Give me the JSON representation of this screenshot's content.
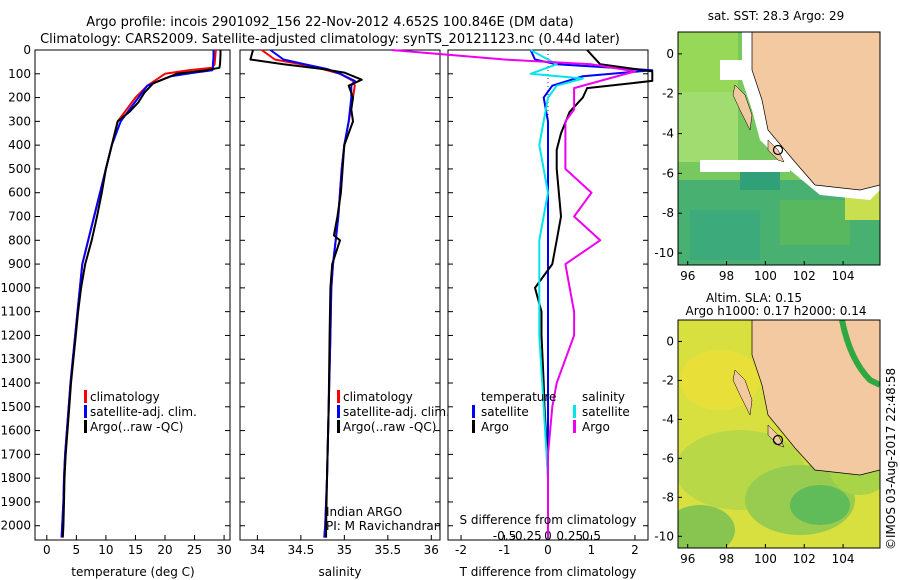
{
  "header": {
    "line1": "Argo profile: incois 2901092_156 22-Nov-2012 4.652S 100.846E (DM data)",
    "line2": "Climatology: CARS2009. Satellite-adjusted climatology: synTS_20121123.nc (0.44d later)"
  },
  "colors": {
    "climatology": "#ff0000",
    "satellite": "#0000ff",
    "argo": "#000000",
    "sal_sat": "#00e5ee",
    "sal_argo": "#ee00ee"
  },
  "legend": {
    "climatology": "climatology",
    "satellite": "satellite-adj. clim.",
    "argo": "Argo(..raw -QC)"
  },
  "diff_legend": {
    "temperature": "temperature",
    "salinity": "salinity",
    "satellite": "satellite",
    "argo": "Argo"
  },
  "credits": {
    "line1": "Indian ARGO",
    "line2": "PI: M Ravichandran",
    "stamp": "©IMOS 03-Aug-2017 22:48:58"
  },
  "maps": {
    "sst": {
      "title": "sat. SST: 28.3 Argo: 29"
    },
    "sla": {
      "title_line1": "Altim. SLA: 0.15",
      "title_line2": "Argo h1000: 0.17 h2000: 0.14"
    },
    "lon_ticks": [
      "96",
      "98",
      "100",
      "102",
      "104"
    ],
    "lat_ticks": [
      "0",
      "-2",
      "-4",
      "-6",
      "-8",
      "-10"
    ]
  },
  "chart_data": [
    {
      "type": "line",
      "id": "temperature",
      "xlabel": "temperature (deg C)",
      "ylabel": "",
      "xlim": [
        -2,
        31
      ],
      "ylim": [
        2060,
        0
      ],
      "y_ticks": [
        0,
        100,
        200,
        300,
        400,
        500,
        600,
        700,
        800,
        900,
        1000,
        1100,
        1200,
        1300,
        1400,
        1500,
        1600,
        1700,
        1800,
        1900,
        2000
      ],
      "x_ticks": [
        0,
        5,
        10,
        15,
        20,
        25,
        30
      ],
      "series": [
        {
          "name": "climatology",
          "color": "#ff0000",
          "points": [
            [
              28.6,
              0
            ],
            [
              28.5,
              30
            ],
            [
              28.4,
              60
            ],
            [
              28.0,
              75
            ],
            [
              24,
              85
            ],
            [
              20,
              100
            ],
            [
              17,
              150
            ],
            [
              15,
              200
            ],
            [
              13.5,
              250
            ],
            [
              12,
              300
            ],
            [
              11,
              400
            ],
            [
              10,
              500
            ],
            [
              9,
              600
            ],
            [
              8,
              700
            ],
            [
              7,
              800
            ],
            [
              6,
              900
            ],
            [
              5.6,
              1000
            ],
            [
              5.2,
              1100
            ],
            [
              4.8,
              1200
            ],
            [
              4.4,
              1300
            ],
            [
              4.0,
              1400
            ],
            [
              3.7,
              1500
            ],
            [
              3.4,
              1600
            ],
            [
              3.1,
              1700
            ],
            [
              2.9,
              1800
            ],
            [
              2.8,
              1900
            ],
            [
              2.6,
              2000
            ],
            [
              2.5,
              2050
            ]
          ]
        },
        {
          "name": "satellite-adj. clim.",
          "color": "#0000ff",
          "points": [
            [
              28.2,
              0
            ],
            [
              28.2,
              30
            ],
            [
              28.1,
              60
            ],
            [
              28.1,
              80
            ],
            [
              28.0,
              85
            ],
            [
              25,
              95
            ],
            [
              21,
              110
            ],
            [
              17,
              150
            ],
            [
              15.5,
              200
            ],
            [
              14,
              250
            ],
            [
              12.5,
              300
            ],
            [
              11,
              400
            ],
            [
              10,
              500
            ],
            [
              9,
              600
            ],
            [
              8,
              700
            ],
            [
              7,
              800
            ],
            [
              6,
              900
            ],
            [
              5.6,
              1000
            ],
            [
              5.2,
              1100
            ],
            [
              4.8,
              1200
            ],
            [
              4.4,
              1300
            ],
            [
              4.0,
              1400
            ],
            [
              3.7,
              1500
            ],
            [
              3.4,
              1600
            ],
            [
              3.1,
              1700
            ],
            [
              2.9,
              1800
            ],
            [
              2.8,
              1900
            ],
            [
              2.6,
              2000
            ],
            [
              2.5,
              2050
            ]
          ]
        },
        {
          "name": "Argo(..raw -QC)",
          "color": "#000000",
          "points": [
            [
              29.4,
              0
            ],
            [
              29.4,
              20
            ],
            [
              29.3,
              60
            ],
            [
              29.2,
              75
            ],
            [
              27,
              85
            ],
            [
              22,
              100
            ],
            [
              18,
              140
            ],
            [
              16.5,
              180
            ],
            [
              15.5,
              220
            ],
            [
              14,
              260
            ],
            [
              12,
              300
            ],
            [
              11,
              400
            ],
            [
              10,
              500
            ],
            [
              9.3,
              600
            ],
            [
              8.5,
              700
            ],
            [
              7.6,
              800
            ],
            [
              6.5,
              900
            ],
            [
              5.8,
              1000
            ],
            [
              5.3,
              1100
            ],
            [
              4.9,
              1200
            ],
            [
              4.5,
              1300
            ],
            [
              4.1,
              1400
            ],
            [
              3.8,
              1500
            ],
            [
              3.5,
              1600
            ],
            [
              3.2,
              1700
            ],
            [
              3.0,
              1800
            ],
            [
              2.9,
              1900
            ],
            [
              2.8,
              2000
            ],
            [
              2.7,
              2050
            ]
          ]
        }
      ]
    },
    {
      "type": "line",
      "id": "salinity",
      "xlabel": "salinity",
      "ylabel": "",
      "xlim": [
        33.8,
        36.1
      ],
      "ylim": [
        2060,
        0
      ],
      "x_ticks": [
        34,
        34.5,
        35,
        35.5,
        36
      ],
      "series": [
        {
          "name": "climatology",
          "color": "#ff0000",
          "points": [
            [
              34.05,
              0
            ],
            [
              34.2,
              40
            ],
            [
              34.5,
              60
            ],
            [
              34.75,
              80
            ],
            [
              34.95,
              100
            ],
            [
              35.1,
              130
            ],
            [
              35.12,
              150
            ],
            [
              35.1,
              200
            ],
            [
              35.05,
              300
            ],
            [
              35.0,
              400
            ],
            [
              34.97,
              500
            ],
            [
              34.95,
              600
            ],
            [
              34.93,
              700
            ],
            [
              34.9,
              800
            ],
            [
              34.87,
              900
            ],
            [
              34.85,
              1000
            ],
            [
              34.84,
              1200
            ],
            [
              34.82,
              1500
            ],
            [
              34.8,
              1800
            ],
            [
              34.78,
              2000
            ],
            [
              34.77,
              2050
            ]
          ]
        },
        {
          "name": "satellite-adj. clim.",
          "color": "#0000ff",
          "points": [
            [
              34.15,
              0
            ],
            [
              34.3,
              40
            ],
            [
              34.55,
              60
            ],
            [
              34.8,
              80
            ],
            [
              34.95,
              100
            ],
            [
              35.12,
              130
            ],
            [
              35.08,
              150
            ],
            [
              35.08,
              200
            ],
            [
              35.05,
              300
            ],
            [
              35.0,
              400
            ],
            [
              34.97,
              500
            ],
            [
              34.95,
              600
            ],
            [
              34.93,
              700
            ],
            [
              34.9,
              800
            ],
            [
              34.87,
              900
            ],
            [
              34.85,
              1000
            ],
            [
              34.84,
              1200
            ],
            [
              34.82,
              1500
            ],
            [
              34.8,
              1800
            ],
            [
              34.78,
              2000
            ],
            [
              34.77,
              2050
            ]
          ]
        },
        {
          "name": "Argo(..raw -QC)",
          "color": "#000000",
          "points": [
            [
              33.95,
              0
            ],
            [
              33.92,
              40
            ],
            [
              34.3,
              60
            ],
            [
              34.75,
              80
            ],
            [
              35.0,
              95
            ],
            [
              35.2,
              125
            ],
            [
              35.05,
              150
            ],
            [
              35.1,
              200
            ],
            [
              35.08,
              250
            ],
            [
              35.1,
              300
            ],
            [
              35.0,
              400
            ],
            [
              34.98,
              500
            ],
            [
              34.96,
              600
            ],
            [
              34.92,
              700
            ],
            [
              34.88,
              780
            ],
            [
              34.95,
              800
            ],
            [
              34.86,
              900
            ],
            [
              34.84,
              1000
            ],
            [
              34.83,
              1200
            ],
            [
              34.82,
              1500
            ],
            [
              34.8,
              1800
            ],
            [
              34.79,
              2000
            ],
            [
              34.79,
              2050
            ]
          ]
        }
      ]
    },
    {
      "type": "line",
      "id": "difference",
      "xlabel": "T difference from climatology",
      "x2label": "S difference from climatology",
      "ylabel": "",
      "xlim": [
        -2.3,
        2.3
      ],
      "ylim": [
        2060,
        0
      ],
      "x_ticks": [
        -2,
        -1,
        0,
        1,
        2
      ],
      "x2_ticks": [
        -0.5,
        -0.25,
        0,
        0.25,
        0.5
      ],
      "series": [
        {
          "name": "temperature satellite",
          "color": "#0000ff",
          "points": [
            [
              -0.4,
              0
            ],
            [
              -0.3,
              40
            ],
            [
              0.2,
              60
            ],
            [
              1.5,
              75
            ],
            [
              2.4,
              85
            ],
            [
              0.8,
              110
            ],
            [
              0.1,
              150
            ],
            [
              -0.1,
              200
            ],
            [
              0,
              300
            ],
            [
              0,
              500
            ],
            [
              0,
              700
            ],
            [
              0,
              900
            ],
            [
              0,
              1200
            ],
            [
              0,
              1500
            ],
            [
              0,
              1800
            ],
            [
              0,
              2050
            ]
          ]
        },
        {
          "name": "temperature Argo",
          "color": "#000000",
          "points": [
            [
              0.9,
              0
            ],
            [
              1.2,
              60
            ],
            [
              2.4,
              90
            ],
            [
              2.4,
              130
            ],
            [
              0.9,
              160
            ],
            [
              0.8,
              200
            ],
            [
              0.5,
              260
            ],
            [
              0.3,
              350
            ],
            [
              0.2,
              420
            ],
            [
              0.2,
              500
            ],
            [
              0.3,
              700
            ],
            [
              0.2,
              800
            ],
            [
              0.1,
              900
            ],
            [
              -0.3,
              1000
            ],
            [
              -0.15,
              1100
            ],
            [
              -0.15,
              1200
            ],
            [
              -0.1,
              1400
            ],
            [
              -0.08,
              1500
            ],
            [
              -0.05,
              1600
            ],
            [
              0,
              1800
            ],
            [
              0,
              2000
            ],
            [
              0,
              2050
            ]
          ]
        },
        {
          "name": "salinity satellite",
          "color": "#00e5ee",
          "points": [
            [
              -0.2,
              0
            ],
            [
              0.1,
              60
            ],
            [
              -0.2,
              100
            ],
            [
              0.4,
              120
            ],
            [
              0.1,
              150
            ],
            [
              0,
              200
            ],
            [
              -0.1,
              400
            ],
            [
              0,
              600
            ],
            [
              -0.1,
              800
            ],
            [
              -0.1,
              1000
            ],
            [
              -0.1,
              1200
            ],
            [
              -0.05,
              1500
            ],
            [
              0,
              1800
            ],
            [
              0,
              2000
            ],
            [
              0,
              2050
            ]
          ]
        },
        {
          "name": "salinity Argo",
          "color": "#ee00ee",
          "points": [
            [
              -1.8,
              0
            ],
            [
              -0.5,
              40
            ],
            [
              0.5,
              60
            ],
            [
              1.0,
              90
            ],
            [
              0.7,
              120
            ],
            [
              0.3,
              160
            ],
            [
              0.3,
              250
            ],
            [
              0.2,
              300
            ],
            [
              0.2,
              500
            ],
            [
              0.5,
              600
            ],
            [
              0.3,
              700
            ],
            [
              0.6,
              800
            ],
            [
              0.2,
              900
            ],
            [
              0.25,
              1000
            ],
            [
              0.3,
              1100
            ],
            [
              0.3,
              1200
            ],
            [
              0.1,
              1400
            ],
            [
              0.05,
              1500
            ],
            [
              0,
              1700
            ],
            [
              0,
              1900
            ],
            [
              0,
              2050
            ]
          ]
        }
      ]
    }
  ]
}
